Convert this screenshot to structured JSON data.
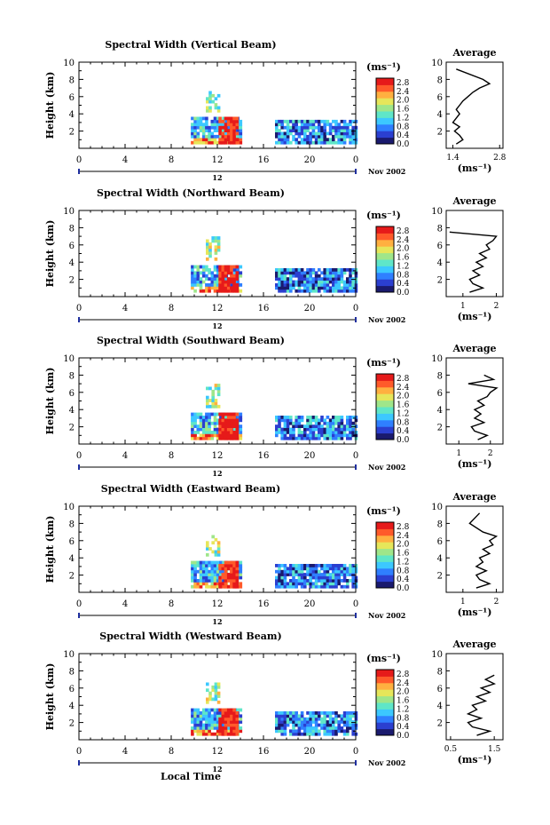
{
  "shared": {
    "ylabel": "Height (km)",
    "xticks": [
      "0",
      "4",
      "8",
      "12",
      "16",
      "20",
      "0"
    ],
    "date_label": "12",
    "month_label": "Nov 2002",
    "unit_label": "(ms⁻¹)",
    "avg_unit_label": "(ms⁻¹)",
    "avg_title": "Average",
    "height_ticks": [
      "2",
      "4",
      "6",
      "8",
      "10"
    ],
    "colorbar_ticks": [
      "0.0",
      "0.4",
      "0.8",
      "1.2",
      "1.6",
      "2.0",
      "2.4",
      "2.8"
    ],
    "footer_xlabel": "Local Time"
  },
  "colorbar_colors": [
    "#1a1a6e",
    "#2b3fd0",
    "#2f7fff",
    "#3cc8ff",
    "#5fe6c8",
    "#9fe68a",
    "#e6e65a",
    "#ffb040",
    "#ff5a2a",
    "#e61a1a"
  ],
  "chart_data": [
    {
      "type": "heatmap",
      "title": "Spectral Width (Vertical Beam)",
      "xlabel": "",
      "ylabel": "Height (km)",
      "xlim": [
        0,
        24
      ],
      "ylim": [
        0,
        10
      ],
      "colorbar_range": [
        0.0,
        3.0
      ],
      "colorbar_unit": "(ms⁻¹)",
      "data_blocks": [
        {
          "x": [
            9.7,
            14.0
          ],
          "y": [
            0.5,
            3.5
          ],
          "level": 1.0
        },
        {
          "x": [
            12.1,
            13.8
          ],
          "y": [
            0.5,
            3.5
          ],
          "level": 2.8
        },
        {
          "x": [
            11.0,
            12.0
          ],
          "y": [
            4.2,
            6.5
          ],
          "level": 1.6
        },
        {
          "x": [
            17.0,
            24.0
          ],
          "y": [
            0.5,
            3.0
          ],
          "level": 0.8
        }
      ],
      "average_profile": {
        "title": "Average",
        "xlabel": "(ms⁻¹)",
        "xticks": [
          "1.4",
          "2.8"
        ],
        "xlim": [
          1.2,
          2.9
        ],
        "height_km": [
          0.5,
          1.0,
          1.5,
          2.0,
          2.5,
          3.0,
          3.5,
          4.0,
          4.5,
          5.0,
          5.5,
          6.0,
          6.5,
          7.0,
          7.5,
          8.0,
          9.2
        ],
        "width_ms": [
          1.5,
          1.7,
          1.6,
          1.45,
          1.6,
          1.4,
          1.5,
          1.6,
          1.5,
          1.6,
          1.7,
          1.85,
          2.0,
          2.2,
          2.5,
          2.3,
          1.5
        ]
      }
    },
    {
      "type": "heatmap",
      "title": "Spectral Width (Northward Beam)",
      "xlabel": "",
      "ylabel": "Height (km)",
      "xlim": [
        0,
        24
      ],
      "ylim": [
        0,
        10
      ],
      "colorbar_range": [
        0.0,
        3.0
      ],
      "colorbar_unit": "(ms⁻¹)",
      "data_blocks": [
        {
          "x": [
            9.7,
            14.0
          ],
          "y": [
            0.5,
            3.5
          ],
          "level": 1.0
        },
        {
          "x": [
            12.1,
            13.8
          ],
          "y": [
            0.5,
            3.5
          ],
          "level": 2.8
        },
        {
          "x": [
            11.0,
            12.0
          ],
          "y": [
            4.2,
            6.8
          ],
          "level": 1.6
        },
        {
          "x": [
            17.0,
            24.0
          ],
          "y": [
            0.5,
            3.0
          ],
          "level": 0.8
        }
      ],
      "average_profile": {
        "title": "Average",
        "xlabel": "(ms⁻¹)",
        "xticks": [
          "1",
          "2"
        ],
        "xlim": [
          0.5,
          2.2
        ],
        "height_km": [
          0.5,
          1.0,
          1.5,
          2.0,
          2.5,
          3.0,
          3.5,
          4.0,
          4.5,
          5.0,
          5.5,
          6.0,
          6.5,
          7.0,
          7.5
        ],
        "width_ms": [
          1.2,
          1.6,
          1.3,
          1.2,
          1.5,
          1.3,
          1.6,
          1.4,
          1.7,
          1.5,
          1.8,
          1.7,
          1.9,
          2.0,
          0.6
        ]
      }
    },
    {
      "type": "heatmap",
      "title": "Spectral Width (Southward Beam)",
      "xlabel": "",
      "ylabel": "Height (km)",
      "xlim": [
        0,
        24
      ],
      "ylim": [
        0,
        10
      ],
      "colorbar_range": [
        0.0,
        3.0
      ],
      "colorbar_unit": "(ms⁻¹)",
      "data_blocks": [
        {
          "x": [
            9.7,
            14.0
          ],
          "y": [
            0.5,
            3.5
          ],
          "level": 1.0
        },
        {
          "x": [
            12.1,
            13.8
          ],
          "y": [
            0.5,
            3.5
          ],
          "level": 2.8
        },
        {
          "x": [
            11.0,
            12.0
          ],
          "y": [
            4.2,
            6.8
          ],
          "level": 1.6
        },
        {
          "x": [
            17.0,
            24.0
          ],
          "y": [
            0.5,
            3.0
          ],
          "level": 0.8
        }
      ],
      "average_profile": {
        "title": "Average",
        "xlabel": "(ms⁻¹)",
        "xticks": [
          "1",
          "2"
        ],
        "xlim": [
          0.6,
          2.4
        ],
        "height_km": [
          0.5,
          1.0,
          1.5,
          2.0,
          2.5,
          3.0,
          3.5,
          4.0,
          4.5,
          5.0,
          5.5,
          6.0,
          6.5,
          7.0,
          7.5,
          8.0
        ],
        "width_ms": [
          1.6,
          1.9,
          1.5,
          1.4,
          1.8,
          1.5,
          1.7,
          1.5,
          1.8,
          1.6,
          1.9,
          2.0,
          2.2,
          1.3,
          2.1,
          1.8
        ]
      }
    },
    {
      "type": "heatmap",
      "title": "Spectral Width (Eastward Beam)",
      "xlabel": "",
      "ylabel": "Height (km)",
      "xlim": [
        0,
        24
      ],
      "ylim": [
        0,
        10
      ],
      "colorbar_range": [
        0.0,
        3.0
      ],
      "colorbar_unit": "(ms⁻¹)",
      "data_blocks": [
        {
          "x": [
            9.7,
            14.0
          ],
          "y": [
            0.5,
            3.5
          ],
          "level": 1.0
        },
        {
          "x": [
            12.1,
            13.8
          ],
          "y": [
            0.5,
            3.5
          ],
          "level": 2.8
        },
        {
          "x": [
            11.0,
            12.0
          ],
          "y": [
            4.2,
            6.5
          ],
          "level": 1.6
        },
        {
          "x": [
            17.0,
            24.0
          ],
          "y": [
            0.5,
            3.0
          ],
          "level": 0.8
        }
      ],
      "average_profile": {
        "title": "Average",
        "xlabel": "(ms⁻¹)",
        "xticks": [
          "1",
          "2"
        ],
        "xlim": [
          0.5,
          2.2
        ],
        "height_km": [
          0.5,
          1.0,
          1.5,
          2.0,
          2.5,
          3.0,
          3.5,
          4.0,
          4.5,
          5.0,
          5.5,
          6.0,
          6.5,
          7.0,
          8.0,
          9.2
        ],
        "width_ms": [
          1.4,
          1.8,
          1.5,
          1.4,
          1.7,
          1.4,
          1.6,
          1.5,
          1.8,
          1.6,
          1.9,
          1.8,
          2.0,
          1.6,
          1.2,
          1.5
        ]
      }
    },
    {
      "type": "heatmap",
      "title": "Spectral Width (Westward Beam)",
      "xlabel": "Local Time",
      "ylabel": "Height (km)",
      "xlim": [
        0,
        24
      ],
      "ylim": [
        0,
        10
      ],
      "colorbar_range": [
        0.0,
        3.0
      ],
      "colorbar_unit": "(ms⁻¹)",
      "data_blocks": [
        {
          "x": [
            9.7,
            14.0
          ],
          "y": [
            0.5,
            3.5
          ],
          "level": 1.0
        },
        {
          "x": [
            12.1,
            13.8
          ],
          "y": [
            0.5,
            3.5
          ],
          "level": 2.8
        },
        {
          "x": [
            11.0,
            12.0
          ],
          "y": [
            4.2,
            6.5
          ],
          "level": 1.6
        },
        {
          "x": [
            17.0,
            24.0
          ],
          "y": [
            0.5,
            3.0
          ],
          "level": 0.8
        }
      ],
      "average_profile": {
        "title": "Average",
        "xlabel": "(ms⁻¹)",
        "xticks": [
          "0.5",
          "1.5"
        ],
        "xlim": [
          0.4,
          1.7
        ],
        "height_km": [
          0.5,
          1.0,
          1.5,
          2.0,
          2.5,
          3.0,
          3.5,
          4.0,
          4.5,
          5.0,
          5.5,
          6.0,
          6.5,
          7.0,
          7.5
        ],
        "width_ms": [
          1.1,
          1.4,
          1.0,
          0.9,
          1.2,
          0.9,
          1.1,
          1.0,
          1.3,
          1.1,
          1.4,
          1.2,
          1.5,
          1.3,
          1.5
        ]
      }
    }
  ]
}
